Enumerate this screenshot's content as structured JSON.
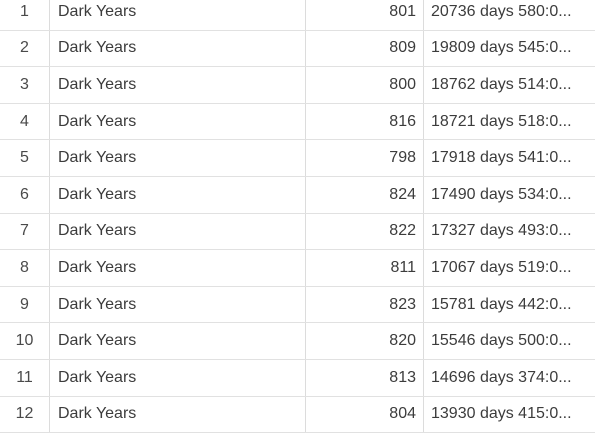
{
  "table": {
    "rows": [
      {
        "rank": "1",
        "name": "Dark Years",
        "value": "801",
        "duration": "20736 days 580:0..."
      },
      {
        "rank": "2",
        "name": "Dark Years",
        "value": "809",
        "duration": "19809 days 545:0..."
      },
      {
        "rank": "3",
        "name": "Dark Years",
        "value": "800",
        "duration": "18762 days 514:0..."
      },
      {
        "rank": "4",
        "name": "Dark Years",
        "value": "816",
        "duration": "18721 days 518:0..."
      },
      {
        "rank": "5",
        "name": "Dark Years",
        "value": "798",
        "duration": "17918 days 541:0..."
      },
      {
        "rank": "6",
        "name": "Dark Years",
        "value": "824",
        "duration": "17490 days 534:0..."
      },
      {
        "rank": "7",
        "name": "Dark Years",
        "value": "822",
        "duration": "17327 days 493:0..."
      },
      {
        "rank": "8",
        "name": "Dark Years",
        "value": "811",
        "duration": "17067 days 519:0..."
      },
      {
        "rank": "9",
        "name": "Dark Years",
        "value": "823",
        "duration": "15781 days 442:0..."
      },
      {
        "rank": "10",
        "name": "Dark Years",
        "value": "820",
        "duration": "15546 days 500:0..."
      },
      {
        "rank": "11",
        "name": "Dark Years",
        "value": "813",
        "duration": "14696 days 374:0..."
      },
      {
        "rank": "12",
        "name": "Dark Years",
        "value": "804",
        "duration": "13930 days 415:0..."
      }
    ]
  }
}
